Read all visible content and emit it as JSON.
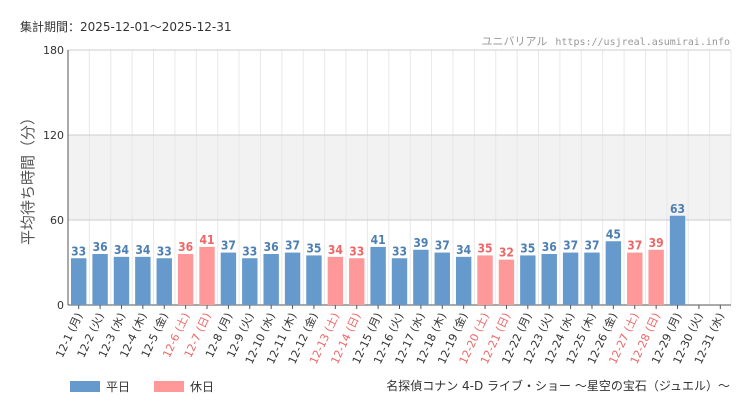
{
  "header": {
    "period_label": "集計期間：2025-12-01〜2025-12-31",
    "site_name": "ユニバリアル",
    "site_url": "https://usjreal.asumirai.info"
  },
  "legend": {
    "weekday": "平日",
    "holiday": "休日"
  },
  "colors": {
    "weekday": "#6699cc",
    "holiday": "#ff9999",
    "weekday_text": "#4d7fb3",
    "holiday_text": "#ee6666",
    "band": "#f2f2f2",
    "grid": "#e8e8e8"
  },
  "chart_data": {
    "type": "bar",
    "title": "名探偵コナン 4-D ライブ・ショー 〜星空の宝石（ジュエル）〜",
    "xlabel": "",
    "ylabel": "平均待ち時間（分）",
    "ylim": [
      0,
      180
    ],
    "yticks": [
      0,
      60,
      120,
      180
    ],
    "categories": [
      "12-1 (月)",
      "12-2 (火)",
      "12-3 (水)",
      "12-4 (木)",
      "12-5 (金)",
      "12-6 (土)",
      "12-7 (日)",
      "12-8 (月)",
      "12-9 (火)",
      "12-10 (水)",
      "12-11 (木)",
      "12-12 (金)",
      "12-13 (土)",
      "12-14 (日)",
      "12-15 (月)",
      "12-16 (火)",
      "12-17 (水)",
      "12-18 (木)",
      "12-19 (金)",
      "12-20 (土)",
      "12-21 (日)",
      "12-22 (月)",
      "12-23 (火)",
      "12-24 (水)",
      "12-25 (木)",
      "12-26 (金)",
      "12-27 (土)",
      "12-28 (日)",
      "12-29 (月)",
      "12-30 (火)",
      "12-31 (水)"
    ],
    "values": [
      33,
      36,
      34,
      34,
      33,
      36,
      41,
      37,
      33,
      36,
      37,
      35,
      34,
      33,
      41,
      33,
      39,
      37,
      34,
      35,
      32,
      35,
      36,
      37,
      37,
      45,
      37,
      39,
      63,
      null,
      null
    ],
    "holiday": [
      false,
      false,
      false,
      false,
      false,
      true,
      true,
      false,
      false,
      false,
      false,
      false,
      true,
      true,
      false,
      false,
      false,
      false,
      false,
      true,
      true,
      false,
      false,
      false,
      false,
      false,
      true,
      true,
      false,
      false,
      false
    ],
    "series": [
      {
        "name": "平日"
      },
      {
        "name": "休日"
      }
    ],
    "grid": true,
    "legend_position": "bottom-left"
  }
}
